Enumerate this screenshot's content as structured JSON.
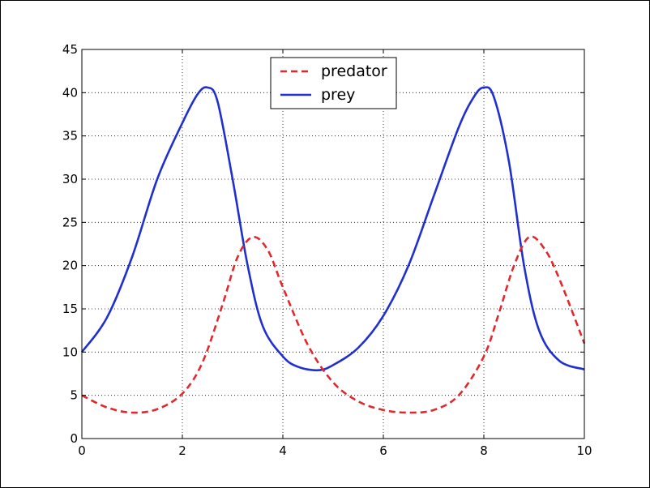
{
  "chart_data": {
    "type": "line",
    "title": "",
    "xlabel": "",
    "ylabel": "",
    "xlim": [
      0,
      10
    ],
    "ylim": [
      0,
      45
    ],
    "xticks": [
      "0",
      "2",
      "4",
      "6",
      "8",
      "10"
    ],
    "yticks": [
      "0",
      "5",
      "10",
      "15",
      "20",
      "25",
      "30",
      "35",
      "40",
      "45"
    ],
    "grid": true,
    "legend_position": "top-center",
    "series": [
      {
        "name": "predator",
        "color": "#e0282e",
        "style": "dashed",
        "x": [
          0,
          0.5,
          1.0,
          1.5,
          2.0,
          2.4,
          2.8,
          3.1,
          3.4,
          3.7,
          4.0,
          4.5,
          5.0,
          5.5,
          6.0,
          6.5,
          7.0,
          7.5,
          8.0,
          8.3,
          8.6,
          8.9,
          9.2,
          9.5,
          10.0
        ],
        "y": [
          5.0,
          3.6,
          3.0,
          3.4,
          5.2,
          8.8,
          15.5,
          21.0,
          23.3,
          21.8,
          17.5,
          10.8,
          6.5,
          4.3,
          3.3,
          3.0,
          3.3,
          5.0,
          9.5,
          14.5,
          20.0,
          23.3,
          22.0,
          18.5,
          11.0
        ]
      },
      {
        "name": "prey",
        "color": "#1f2fd0",
        "style": "solid",
        "x": [
          0,
          0.5,
          1.0,
          1.5,
          2.0,
          2.3,
          2.5,
          2.7,
          3.0,
          3.3,
          3.6,
          4.0,
          4.3,
          4.7,
          5.0,
          5.5,
          6.0,
          6.5,
          7.0,
          7.5,
          7.8,
          8.0,
          8.2,
          8.5,
          8.8,
          9.1,
          9.5,
          10.0
        ],
        "y": [
          10.0,
          14.0,
          21.0,
          30.0,
          36.5,
          39.8,
          40.6,
          39.0,
          30.0,
          20.0,
          13.0,
          9.5,
          8.3,
          7.9,
          8.5,
          10.5,
          14.2,
          20.0,
          28.0,
          36.0,
          39.5,
          40.6,
          39.5,
          32.0,
          20.0,
          12.5,
          9.0,
          8.0
        ]
      }
    ]
  }
}
